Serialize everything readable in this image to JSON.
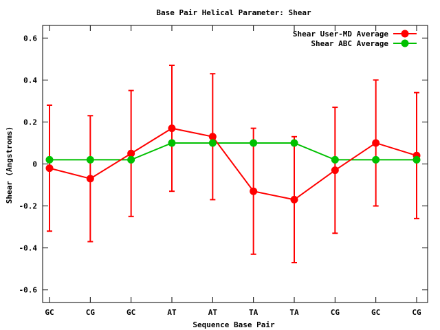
{
  "chart_data": {
    "type": "line",
    "title": "Base Pair Helical Parameter: Shear",
    "xlabel": "Sequence Base Pair",
    "ylabel": "Shear (Angstroms)",
    "categories": [
      "GC",
      "CG",
      "GC",
      "AT",
      "AT",
      "TA",
      "TA",
      "CG",
      "GC",
      "CG"
    ],
    "ylim": [
      -0.66,
      0.66
    ],
    "yticks": [
      -0.6,
      -0.4,
      -0.2,
      0,
      0.2,
      0.4,
      0.6
    ],
    "ytick_labels": [
      "-0.6",
      "-0.4",
      "-0.2",
      "0",
      "0.2",
      "0.4",
      "0.6"
    ],
    "grid": false,
    "legend_position": "top-right",
    "series": [
      {
        "name": "Shear User-MD Average",
        "color": "#ff0000",
        "values": [
          -0.02,
          -0.07,
          0.05,
          0.17,
          0.13,
          -0.13,
          -0.17,
          -0.03,
          0.1,
          0.04
        ],
        "error_low": [
          -0.32,
          -0.37,
          -0.25,
          -0.13,
          -0.17,
          -0.43,
          -0.47,
          -0.33,
          -0.2,
          -0.26
        ],
        "error_high": [
          0.28,
          0.23,
          0.35,
          0.47,
          0.43,
          0.17,
          0.13,
          0.27,
          0.4,
          0.34
        ]
      },
      {
        "name": "Shear ABC Average",
        "color": "#00c000",
        "values": [
          0.02,
          0.02,
          0.02,
          0.1,
          0.1,
          0.1,
          0.1,
          0.02,
          0.02,
          0.02
        ]
      }
    ]
  }
}
